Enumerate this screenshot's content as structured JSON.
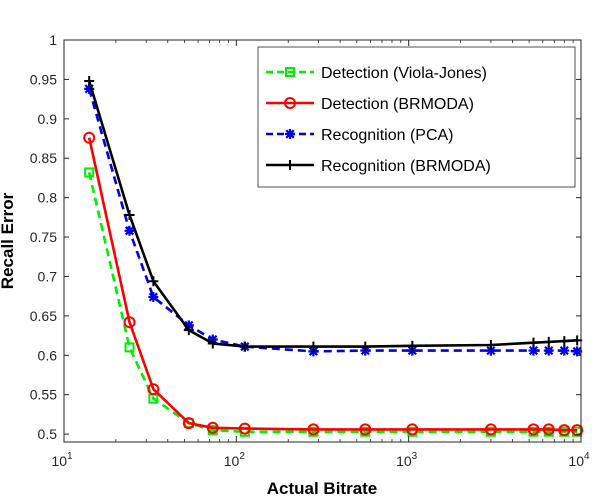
{
  "chart_data": {
    "type": "line",
    "xscale": "log",
    "xlim": [
      10,
      10000
    ],
    "ylim": [
      0.49,
      1.0
    ],
    "xlabel": "Actual Bitrate",
    "ylabel": "Recall Error",
    "xticks": [
      {
        "value": 10,
        "base": "10",
        "exp": "1"
      },
      {
        "value": 100,
        "base": "10",
        "exp": "2"
      },
      {
        "value": 1000,
        "base": "10",
        "exp": "3"
      },
      {
        "value": 10000,
        "base": "10",
        "exp": "4"
      }
    ],
    "yticks": [
      {
        "value": 0.5,
        "label": "0.5"
      },
      {
        "value": 0.55,
        "label": "0.55"
      },
      {
        "value": 0.6,
        "label": "0.6"
      },
      {
        "value": 0.65,
        "label": "0.65"
      },
      {
        "value": 0.7,
        "label": "0.7"
      },
      {
        "value": 0.75,
        "label": "0.75"
      },
      {
        "value": 0.8,
        "label": "0.8"
      },
      {
        "value": 0.85,
        "label": "0.85"
      },
      {
        "value": 0.9,
        "label": "0.9"
      },
      {
        "value": 0.95,
        "label": "0.95"
      },
      {
        "value": 1.0,
        "label": "1"
      }
    ],
    "legend_position": "top-right",
    "grid": false,
    "series": [
      {
        "name": "Detection (Viola-Jones)",
        "color": "#00ee00",
        "dash": "dashed",
        "marker": "square",
        "x": [
          14,
          24,
          33,
          53,
          73,
          112,
          280,
          560,
          1050,
          3000,
          5300,
          6500,
          8000,
          9500
        ],
        "y": [
          0.832,
          0.61,
          0.545,
          0.514,
          0.505,
          0.503,
          0.503,
          0.503,
          0.503,
          0.503,
          0.503,
          0.503,
          0.503,
          0.503
        ]
      },
      {
        "name": "Detection (BRMODA)",
        "color": "#ff0000",
        "dash": "solid",
        "marker": "circle",
        "x": [
          14,
          24,
          33,
          53,
          73,
          112,
          280,
          560,
          1050,
          3000,
          5300,
          6500,
          8000,
          9500
        ],
        "y": [
          0.876,
          0.642,
          0.557,
          0.514,
          0.508,
          0.507,
          0.506,
          0.506,
          0.506,
          0.506,
          0.506,
          0.506,
          0.505,
          0.505
        ]
      },
      {
        "name": "Recognition (PCA)",
        "color": "#0000ee",
        "dash": "dashed",
        "marker": "star",
        "x": [
          14,
          24,
          33,
          53,
          73,
          112,
          280,
          560,
          1050,
          3000,
          5300,
          6500,
          8000,
          9500
        ],
        "y": [
          0.938,
          0.758,
          0.674,
          0.638,
          0.62,
          0.611,
          0.605,
          0.606,
          0.606,
          0.606,
          0.606,
          0.606,
          0.606,
          0.605
        ]
      },
      {
        "name": "Recognition (BRMODA)",
        "color": "#000000",
        "dash": "solid",
        "marker": "plus",
        "x": [
          14,
          24,
          33,
          53,
          73,
          112,
          280,
          560,
          1050,
          3000,
          5300,
          6500,
          8000,
          9500
        ],
        "y": [
          0.948,
          0.778,
          0.694,
          0.632,
          0.615,
          0.611,
          0.611,
          0.611,
          0.612,
          0.613,
          0.616,
          0.617,
          0.618,
          0.619
        ]
      }
    ]
  }
}
